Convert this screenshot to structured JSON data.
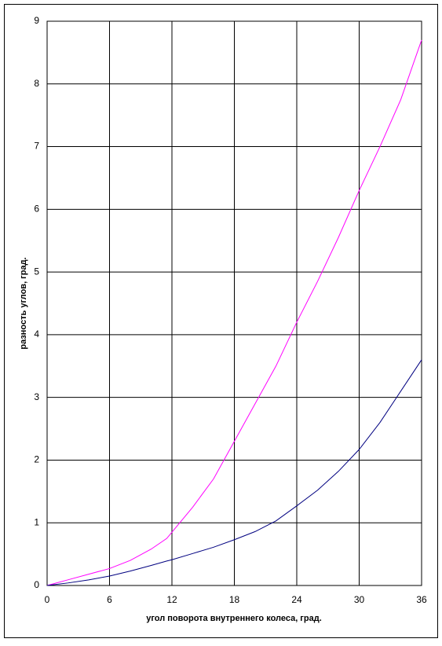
{
  "chart_data": {
    "type": "line",
    "xlabel": "угол поворота внутреннего колеса, град.",
    "ylabel": "разность углов, град.",
    "x": [
      0,
      2,
      4,
      6,
      8,
      10,
      11.5,
      12,
      14,
      16,
      18,
      20,
      22,
      24,
      26,
      28,
      30,
      32,
      34,
      36
    ],
    "series": [
      {
        "color": "#ff00ff",
        "values": [
          0,
          0.09,
          0.18,
          0.27,
          0.4,
          0.58,
          0.75,
          0.85,
          1.25,
          1.7,
          2.3,
          2.9,
          3.5,
          4.2,
          4.85,
          5.55,
          6.3,
          7.0,
          7.75,
          8.7
        ]
      },
      {
        "color": "#000080",
        "values": [
          0,
          0.04,
          0.09,
          0.15,
          0.23,
          0.32,
          0.39,
          0.41,
          0.51,
          0.61,
          0.73,
          0.86,
          1.03,
          1.27,
          1.52,
          1.82,
          2.17,
          2.6,
          3.1,
          3.6
        ]
      }
    ],
    "xlim": [
      0,
      36
    ],
    "xticks": [
      0,
      6,
      12,
      18,
      24,
      30,
      36
    ],
    "ylim": [
      0,
      9
    ],
    "yticks": [
      0,
      1,
      2,
      3,
      4,
      5,
      6,
      7,
      8,
      9
    ],
    "grid": true
  }
}
